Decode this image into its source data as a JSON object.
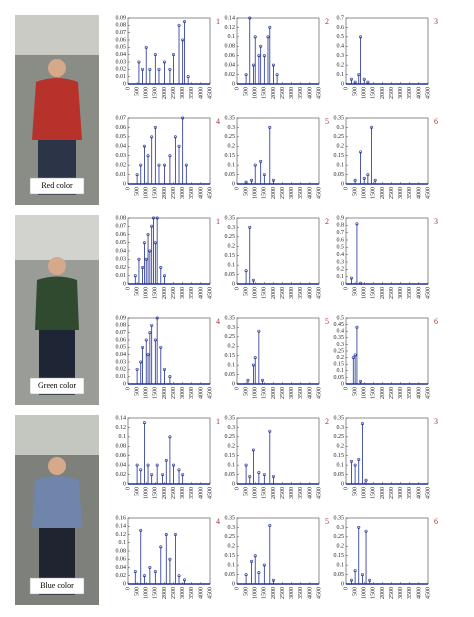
{
  "photo_labels": [
    "Red color",
    "Green color",
    "Blue color"
  ],
  "chart_data": [
    {
      "type": "stem",
      "label": "1",
      "x": [
        600,
        800,
        1000,
        1200,
        1500,
        1700,
        2000,
        2300,
        2500,
        2800,
        3000,
        3100,
        3300
      ],
      "values": [
        0.03,
        0.02,
        0.05,
        0.02,
        0.04,
        0.02,
        0.03,
        0.02,
        0.04,
        0.08,
        0.06,
        0.085,
        0.01
      ],
      "color": "#1f2f8f",
      "xlim": [
        0,
        4500
      ],
      "ylim": [
        0,
        0.09
      ],
      "xticks": [
        0,
        500,
        1000,
        1500,
        2000,
        2500,
        3000,
        3500,
        4000,
        4500
      ],
      "yticks": [
        0,
        0.01,
        0.02,
        0.03,
        0.04,
        0.05,
        0.06,
        0.07,
        0.08,
        0.09
      ]
    },
    {
      "type": "stem",
      "label": "2",
      "x": [
        500,
        700,
        900,
        1000,
        1200,
        1300,
        1500,
        1700,
        1800,
        2000,
        2200
      ],
      "values": [
        0.02,
        0.14,
        0.04,
        0.1,
        0.06,
        0.08,
        0.06,
        0.1,
        0.12,
        0.04,
        0.02
      ],
      "color": "#1f2f8f",
      "xlim": [
        0,
        4500
      ],
      "ylim": [
        0,
        0.14
      ],
      "xticks": [
        0,
        500,
        1000,
        1500,
        2000,
        2500,
        3000,
        3500,
        4000,
        4500
      ],
      "yticks": [
        0,
        0.02,
        0.04,
        0.06,
        0.08,
        0.1,
        0.12,
        0.14
      ]
    },
    {
      "type": "stem",
      "label": "3",
      "x": [
        300,
        500,
        700,
        800,
        1000,
        1200
      ],
      "values": [
        0.05,
        0.02,
        0.1,
        0.5,
        0.05,
        0.02
      ],
      "color": "#1f2f8f",
      "xlim": [
        0,
        4500
      ],
      "ylim": [
        0,
        0.7
      ],
      "xticks": [
        0,
        500,
        1000,
        1500,
        2000,
        2500,
        3000,
        3500,
        4000,
        4500
      ],
      "yticks": [
        0,
        0.1,
        0.2,
        0.3,
        0.4,
        0.5,
        0.6,
        0.7
      ]
    },
    {
      "type": "stem",
      "label": "4",
      "x": [
        500,
        700,
        900,
        1100,
        1300,
        1500,
        1700,
        2000,
        2300,
        2600,
        2800,
        3000,
        3200
      ],
      "values": [
        0.01,
        0.02,
        0.04,
        0.03,
        0.05,
        0.06,
        0.02,
        0.02,
        0.03,
        0.05,
        0.04,
        0.07,
        0.02
      ],
      "color": "#1f2f8f",
      "xlim": [
        0,
        4500
      ],
      "ylim": [
        0,
        0.07
      ],
      "xticks": [
        0,
        500,
        1000,
        1500,
        2000,
        2500,
        3000,
        3500,
        4000,
        4500
      ],
      "yticks": [
        0,
        0.01,
        0.02,
        0.03,
        0.04,
        0.05,
        0.06,
        0.07
      ]
    },
    {
      "type": "stem",
      "label": "5",
      "x": [
        500,
        800,
        1000,
        1300,
        1500,
        1800,
        2000
      ],
      "values": [
        0.01,
        0.02,
        0.1,
        0.12,
        0.05,
        0.3,
        0.02
      ],
      "color": "#1f2f8f",
      "xlim": [
        0,
        4500
      ],
      "ylim": [
        0,
        0.35
      ],
      "xticks": [
        0,
        500,
        1000,
        1500,
        2000,
        2500,
        3000,
        3500,
        4000,
        4500
      ],
      "yticks": [
        0,
        0.05,
        0.1,
        0.15,
        0.2,
        0.25,
        0.3,
        0.35
      ]
    },
    {
      "type": "stem",
      "label": "6",
      "x": [
        500,
        800,
        1000,
        1200,
        1400,
        1600
      ],
      "values": [
        0.02,
        0.17,
        0.03,
        0.05,
        0.3,
        0.02
      ],
      "color": "#1f2f8f",
      "xlim": [
        0,
        4500
      ],
      "ylim": [
        0,
        0.35
      ],
      "xticks": [
        0,
        500,
        1000,
        1500,
        2000,
        2500,
        3000,
        3500,
        4000,
        4500
      ],
      "yticks": [
        0,
        0.05,
        0.1,
        0.15,
        0.2,
        0.25,
        0.3,
        0.35
      ]
    },
    {
      "type": "stem",
      "label": "1",
      "x": [
        400,
        600,
        800,
        900,
        1000,
        1100,
        1200,
        1300,
        1400,
        1500,
        1600,
        1800,
        2000
      ],
      "values": [
        0.01,
        0.03,
        0.02,
        0.05,
        0.03,
        0.06,
        0.04,
        0.07,
        0.08,
        0.05,
        0.08,
        0.02,
        0.01
      ],
      "color": "#1f2f8f",
      "xlim": [
        0,
        4500
      ],
      "ylim": [
        0,
        0.08
      ],
      "xticks": [
        0,
        500,
        1000,
        1500,
        2000,
        2500,
        3000,
        3500,
        4000,
        4500
      ],
      "yticks": [
        0,
        0.01,
        0.02,
        0.03,
        0.04,
        0.05,
        0.06,
        0.07,
        0.08
      ]
    },
    {
      "type": "stem",
      "label": "2",
      "x": [
        500,
        700,
        900
      ],
      "values": [
        0.07,
        0.3,
        0.02
      ],
      "color": "#1f2f8f",
      "xlim": [
        0,
        4500
      ],
      "ylim": [
        0,
        0.35
      ],
      "xticks": [
        0,
        500,
        1000,
        1500,
        2000,
        2500,
        3000,
        3500,
        4000,
        4500
      ],
      "yticks": [
        0,
        0.05,
        0.1,
        0.15,
        0.2,
        0.25,
        0.3,
        0.35
      ]
    },
    {
      "type": "stem",
      "label": "3",
      "x": [
        300,
        600,
        800
      ],
      "values": [
        0.08,
        0.82,
        0.01
      ],
      "color": "#1f2f8f",
      "xlim": [
        0,
        4500
      ],
      "ylim": [
        0,
        0.9
      ],
      "xticks": [
        0,
        500,
        1000,
        1500,
        2000,
        2500,
        3000,
        3500,
        4000,
        4500
      ],
      "yticks": [
        0,
        0.1,
        0.2,
        0.3,
        0.4,
        0.5,
        0.6,
        0.7,
        0.8,
        0.9
      ]
    },
    {
      "type": "stem",
      "label": "4",
      "x": [
        500,
        700,
        800,
        1000,
        1100,
        1200,
        1300,
        1500,
        1600,
        1800,
        2000,
        2300
      ],
      "values": [
        0.02,
        0.03,
        0.05,
        0.06,
        0.04,
        0.07,
        0.08,
        0.06,
        0.09,
        0.05,
        0.02,
        0.01
      ],
      "color": "#1f2f8f",
      "xlim": [
        0,
        4500
      ],
      "ylim": [
        0,
        0.09
      ],
      "xticks": [
        0,
        500,
        1000,
        1500,
        2000,
        2500,
        3000,
        3500,
        4000,
        4500
      ],
      "yticks": [
        0,
        0.01,
        0.02,
        0.03,
        0.04,
        0.05,
        0.06,
        0.07,
        0.08,
        0.09
      ]
    },
    {
      "type": "stem",
      "label": "5",
      "x": [
        600,
        900,
        1000,
        1200,
        1400
      ],
      "values": [
        0.02,
        0.1,
        0.14,
        0.28,
        0.02
      ],
      "color": "#1f2f8f",
      "xlim": [
        0,
        4500
      ],
      "ylim": [
        0,
        0.35
      ],
      "xticks": [
        0,
        500,
        1000,
        1500,
        2000,
        2500,
        3000,
        3500,
        4000,
        4500
      ],
      "yticks": [
        0,
        0.05,
        0.1,
        0.15,
        0.2,
        0.25,
        0.3,
        0.35
      ]
    },
    {
      "type": "stem",
      "label": "6",
      "x": [
        400,
        500,
        600,
        800
      ],
      "values": [
        0.2,
        0.22,
        0.43,
        0.02
      ],
      "color": "#1f2f8f",
      "xlim": [
        0,
        4500
      ],
      "ylim": [
        0,
        0.5
      ],
      "xticks": [
        0,
        500,
        1000,
        1500,
        2000,
        2500,
        3000,
        3500,
        4000,
        4500
      ],
      "yticks": [
        0,
        0.05,
        0.1,
        0.15,
        0.2,
        0.25,
        0.3,
        0.35,
        0.4,
        0.45,
        0.5
      ]
    },
    {
      "type": "stem",
      "label": "1",
      "x": [
        500,
        700,
        900,
        1100,
        1300,
        1600,
        1900,
        2100,
        2300,
        2500,
        2800,
        3000
      ],
      "values": [
        0.04,
        0.03,
        0.13,
        0.04,
        0.02,
        0.04,
        0.02,
        0.05,
        0.1,
        0.04,
        0.03,
        0.02
      ],
      "color": "#1f2f8f",
      "xlim": [
        0,
        4500
      ],
      "ylim": [
        0,
        0.14
      ],
      "xticks": [
        0,
        500,
        1000,
        1500,
        2000,
        2500,
        3000,
        3500,
        4000,
        4500
      ],
      "yticks": [
        0,
        0.02,
        0.04,
        0.06,
        0.08,
        0.1,
        0.12,
        0.14
      ]
    },
    {
      "type": "stem",
      "label": "2",
      "x": [
        500,
        700,
        900,
        1200,
        1500,
        1800,
        2000
      ],
      "values": [
        0.1,
        0.04,
        0.18,
        0.06,
        0.05,
        0.28,
        0.04
      ],
      "color": "#1f2f8f",
      "xlim": [
        0,
        4500
      ],
      "ylim": [
        0,
        0.35
      ],
      "xticks": [
        0,
        500,
        1000,
        1500,
        2000,
        2500,
        3000,
        3500,
        4000,
        4500
      ],
      "yticks": [
        0,
        0.05,
        0.1,
        0.15,
        0.2,
        0.25,
        0.3,
        0.35
      ]
    },
    {
      "type": "stem",
      "label": "3",
      "x": [
        300,
        500,
        700,
        900,
        1100
      ],
      "values": [
        0.12,
        0.1,
        0.13,
        0.32,
        0.02
      ],
      "color": "#1f2f8f",
      "xlim": [
        0,
        4500
      ],
      "ylim": [
        0,
        0.35
      ],
      "xticks": [
        0,
        500,
        1000,
        1500,
        2000,
        2500,
        3000,
        3500,
        4000,
        4500
      ],
      "yticks": [
        0,
        0.05,
        0.1,
        0.15,
        0.2,
        0.25,
        0.3,
        0.35
      ]
    },
    {
      "type": "stem",
      "label": "4",
      "x": [
        400,
        700,
        900,
        1200,
        1500,
        1800,
        2100,
        2300,
        2600,
        2800,
        3100
      ],
      "values": [
        0.03,
        0.13,
        0.02,
        0.04,
        0.03,
        0.09,
        0.12,
        0.06,
        0.12,
        0.02,
        0.01
      ],
      "color": "#1f2f8f",
      "xlim": [
        0,
        4500
      ],
      "ylim": [
        0,
        0.16
      ],
      "xticks": [
        0,
        500,
        1000,
        1500,
        2000,
        2500,
        3000,
        3500,
        4000,
        4500
      ],
      "yticks": [
        0,
        0.02,
        0.04,
        0.06,
        0.08,
        0.1,
        0.12,
        0.14,
        0.16
      ]
    },
    {
      "type": "stem",
      "label": "5",
      "x": [
        500,
        800,
        1000,
        1200,
        1500,
        1800,
        2000
      ],
      "values": [
        0.05,
        0.12,
        0.15,
        0.06,
        0.1,
        0.31,
        0.02
      ],
      "color": "#1f2f8f",
      "xlim": [
        0,
        4500
      ],
      "ylim": [
        0,
        0.35
      ],
      "xticks": [
        0,
        500,
        1000,
        1500,
        2000,
        2500,
        3000,
        3500,
        4000,
        4500
      ],
      "yticks": [
        0,
        0.05,
        0.1,
        0.15,
        0.2,
        0.25,
        0.3,
        0.35
      ]
    },
    {
      "type": "stem",
      "label": "6",
      "x": [
        300,
        500,
        700,
        900,
        1100,
        1300
      ],
      "values": [
        0.02,
        0.07,
        0.3,
        0.05,
        0.28,
        0.02
      ],
      "color": "#1f2f8f",
      "xlim": [
        0,
        4500
      ],
      "ylim": [
        0,
        0.35
      ],
      "xticks": [
        0,
        500,
        1000,
        1500,
        2000,
        2500,
        3000,
        3500,
        4000,
        4500
      ],
      "yticks": [
        0,
        0.05,
        0.1,
        0.15,
        0.2,
        0.25,
        0.3,
        0.35
      ]
    }
  ]
}
